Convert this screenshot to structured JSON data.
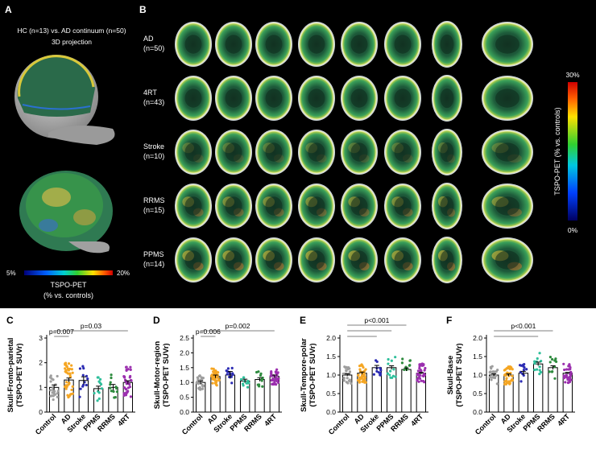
{
  "panel_a": {
    "letter": "A",
    "header_line1": "HC (n=13) vs. AD continuum (n=50)",
    "header_line2": "3D projection",
    "colorbar": {
      "min_label": "5%",
      "max_label": "20%",
      "caption_line1": "TSPO-PET",
      "caption_line2": "(% vs. controls)"
    }
  },
  "panel_b": {
    "letter": "B",
    "rows": [
      {
        "label": "AD",
        "n": "(n=50)",
        "intensity": 0.3
      },
      {
        "label": "4RT",
        "n": "(n=43)",
        "intensity": 0.35
      },
      {
        "label": "Stroke",
        "n": "(n=10)",
        "intensity": 0.55
      },
      {
        "label": "RRMS",
        "n": "(n=15)",
        "intensity": 0.7
      },
      {
        "label": "PPMS",
        "n": "(n=14)",
        "intensity": 0.8
      }
    ],
    "colorbar": {
      "max_label": "30%",
      "min_label": "0%",
      "caption": "TSPO-PET (% vs. controls)"
    }
  },
  "colors": {
    "Control": "#9e9e9e",
    "AD": "#f5a623",
    "Stroke": "#2b2bb3",
    "PPMS": "#2fbf9b",
    "RRMS": "#2e8b3e",
    "4RT": "#9b2fae"
  },
  "chart_data": [
    {
      "type": "bar",
      "panel": "C",
      "categories": [
        "Control",
        "AD",
        "Stroke",
        "PPMS",
        "RRMS",
        "4RT"
      ],
      "values": [
        1.0,
        1.3,
        1.28,
        0.95,
        1.0,
        1.2
      ],
      "errors": [
        0.1,
        0.08,
        0.15,
        0.1,
        0.12,
        0.07
      ],
      "ylabel_line1": "Skull-Fronto-parietal",
      "ylabel_line2": "(TSPO-PET SUVr)",
      "ylim": [
        0,
        3
      ],
      "yticks": [
        "0",
        "1",
        "2",
        "3"
      ],
      "annotations": [
        {
          "text": "p=0.03",
          "from": 0,
          "to": 5,
          "level": 2
        },
        {
          "text": "p=0.007",
          "from": 0,
          "to": 1,
          "level": 1
        }
      ]
    },
    {
      "type": "bar",
      "panel": "D",
      "categories": [
        "Control",
        "AD",
        "Stroke",
        "PPMS",
        "RRMS",
        "4RT"
      ],
      "values": [
        1.0,
        1.2,
        1.25,
        1.05,
        1.1,
        1.2
      ],
      "errors": [
        0.05,
        0.05,
        0.12,
        0.06,
        0.06,
        0.05
      ],
      "ylabel_line1": "Skull-Motor-region",
      "ylabel_line2": "(TSPO-PET SUVr)",
      "ylim": [
        0,
        2.5
      ],
      "yticks": [
        "0.0",
        "0.5",
        "1.0",
        "1.5",
        "2.0",
        "2.5"
      ],
      "annotations": [
        {
          "text": "p=0.002",
          "from": 0,
          "to": 5,
          "level": 2
        },
        {
          "text": "p=0.006",
          "from": 0,
          "to": 1,
          "level": 1
        }
      ]
    },
    {
      "type": "bar",
      "panel": "E",
      "categories": [
        "Control",
        "AD",
        "Stroke",
        "PPMS",
        "RRMS",
        "4RT"
      ],
      "values": [
        1.0,
        1.05,
        1.2,
        1.2,
        1.15,
        1.05
      ],
      "errors": [
        0.03,
        0.03,
        0.06,
        0.05,
        0.04,
        0.02
      ],
      "ylabel_line1": "Skull-Tempore-polar",
      "ylabel_line2": "(TSPO-PET SUVr)",
      "ylim": [
        0,
        2.0
      ],
      "yticks": [
        "0.0",
        "0.5",
        "1.0",
        "1.5",
        "2.0"
      ],
      "annotations": [
        {
          "text": "p<0.001",
          "from": 0,
          "to": 4,
          "level": 3
        },
        {
          "text": "",
          "from": 0,
          "to": 3,
          "level": 2
        },
        {
          "text": "",
          "from": 0,
          "to": 2,
          "level": 1
        }
      ]
    },
    {
      "type": "bar",
      "panel": "F",
      "categories": [
        "Control",
        "AD",
        "Stroke",
        "PPMS",
        "RRMS",
        "4RT"
      ],
      "values": [
        1.0,
        1.0,
        1.05,
        1.3,
        1.2,
        1.05
      ],
      "errors": [
        0.03,
        0.03,
        0.05,
        0.05,
        0.05,
        0.02
      ],
      "ylabel_line1": "Skull-Base",
      "ylabel_line2": "(TSPO-PET SUVr)",
      "ylim": [
        0,
        2.0
      ],
      "yticks": [
        "0.0",
        "0.5",
        "1.0",
        "1.5",
        "2.0"
      ],
      "annotations": [
        {
          "text": "p<0.001",
          "from": 0,
          "to": 4,
          "level": 2
        },
        {
          "text": "",
          "from": 0,
          "to": 3,
          "level": 1
        }
      ]
    }
  ]
}
